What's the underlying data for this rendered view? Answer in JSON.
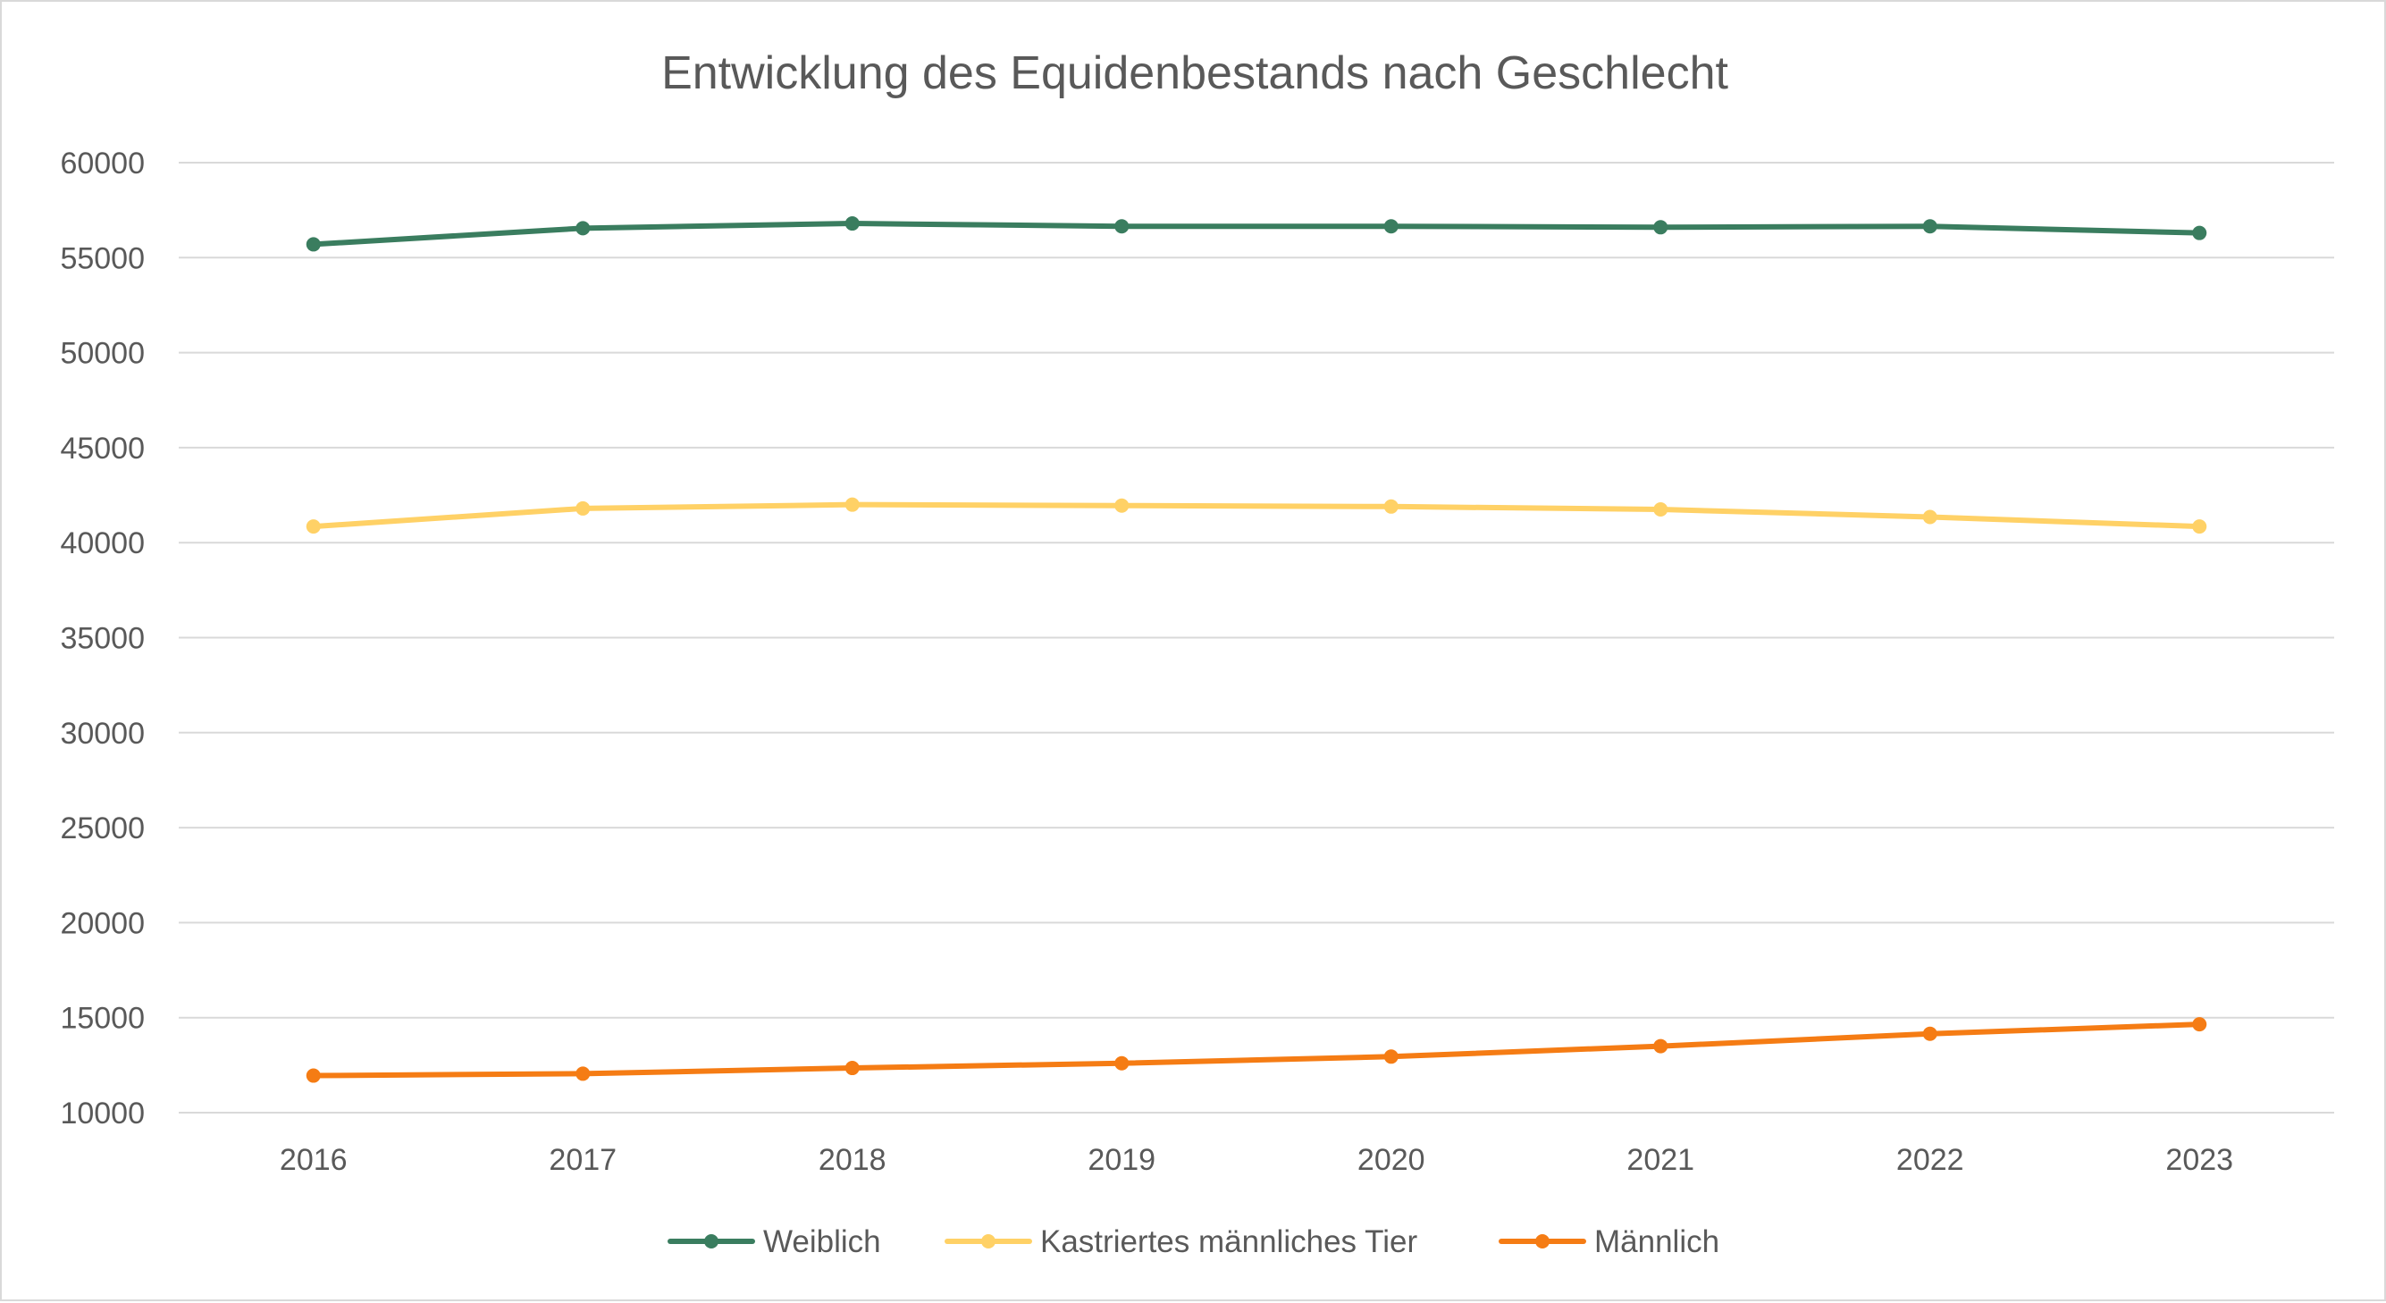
{
  "chart_data": {
    "type": "line",
    "title": "Entwicklung des Equidenbestands nach Geschlecht",
    "xlabel": "",
    "ylabel": "",
    "categories": [
      "2016",
      "2017",
      "2018",
      "2019",
      "2020",
      "2021",
      "2022",
      "2023"
    ],
    "ylim": [
      10000,
      60000
    ],
    "yticks": [
      "60000",
      "55000",
      "50000",
      "45000",
      "40000",
      "35000",
      "30000",
      "25000",
      "20000",
      "15000",
      "10000"
    ],
    "grid": true,
    "legend_position": "bottom",
    "series": [
      {
        "name": "Weiblich",
        "color": "#3a7d5f",
        "values": [
          55700,
          56550,
          56800,
          56650,
          56650,
          56600,
          56650,
          56300
        ]
      },
      {
        "name": "Kastriertes männliches Tier",
        "color": "#ffd166",
        "values": [
          40850,
          41800,
          42000,
          41950,
          41900,
          41750,
          41350,
          40850
        ]
      },
      {
        "name": "Männlich",
        "color": "#f57c14",
        "values": [
          11950,
          12050,
          12350,
          12600,
          12950,
          13500,
          14150,
          14650
        ]
      }
    ]
  }
}
